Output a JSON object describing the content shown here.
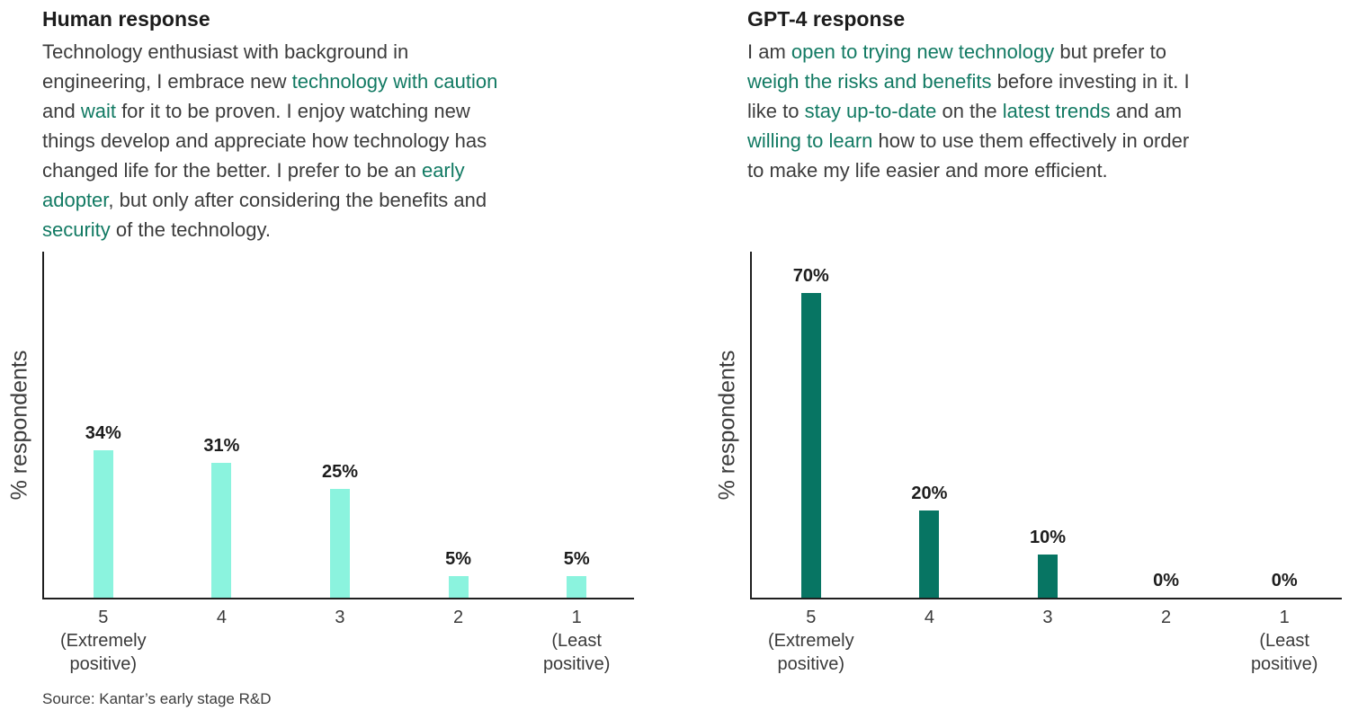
{
  "colors": {
    "highlight_text": "#127a63",
    "bar_light": "#8bf3de",
    "bar_dark": "#077563",
    "axis": "#1f1f1f",
    "title_text": "#1c1c1c",
    "body_text": "#3c3c3c"
  },
  "panels": [
    {
      "id": "human",
      "title": "Human response",
      "paragraph_lines": [
        [
          {
            "t": "Technology enthusiast with background in"
          }
        ],
        [
          {
            "t": "engineering, I embrace new "
          },
          {
            "t": "technology with caution",
            "h": true
          }
        ],
        [
          {
            "t": "and "
          },
          {
            "t": "wait",
            "h": true
          },
          {
            "t": " for it to be proven. I enjoy watching new"
          }
        ],
        [
          {
            "t": "things develop and appreciate how technology has"
          }
        ],
        [
          {
            "t": "changed life for the better. I prefer to be an "
          },
          {
            "t": "early",
            "h": true
          }
        ],
        [
          {
            "t": "adopter",
            "h": true
          },
          {
            "t": ", but only after considering the benefits and"
          }
        ],
        [
          {
            "t": "security",
            "h": true
          },
          {
            "t": " of the technology."
          }
        ]
      ]
    },
    {
      "id": "gpt4",
      "title": "GPT-4 response",
      "paragraph_lines": [
        [
          {
            "t": "I am "
          },
          {
            "t": "open to trying new technology",
            "h": true
          },
          {
            "t": " but prefer to"
          }
        ],
        [
          {
            "t": "weigh the risks and benefits",
            "h": true
          },
          {
            "t": " before investing in it. I"
          }
        ],
        [
          {
            "t": "like to "
          },
          {
            "t": "stay up-to-date",
            "h": true
          },
          {
            "t": " on the "
          },
          {
            "t": "latest trends",
            "h": true
          },
          {
            "t": " and am"
          }
        ],
        [
          {
            "t": "willing to learn",
            "h": true
          },
          {
            "t": " how to use them effectively in order"
          }
        ],
        [
          {
            "t": "to make my life easier and more efficient."
          }
        ]
      ]
    }
  ],
  "chart_data": [
    {
      "type": "bar",
      "panel": "Human response",
      "ylabel": "% respondents",
      "categories": [
        [
          "5",
          "(Extremely",
          "positive)"
        ],
        [
          "4"
        ],
        [
          "3"
        ],
        [
          "2"
        ],
        [
          "1",
          "(Least",
          "positive)"
        ]
      ],
      "values": [
        34,
        31,
        25,
        5,
        5
      ],
      "value_labels": [
        "34%",
        "31%",
        "25%",
        "5%",
        "5%"
      ],
      "bar_color": "#8bf3de",
      "ylim": [
        0,
        80
      ],
      "grid": false,
      "legend": "none"
    },
    {
      "type": "bar",
      "panel": "GPT-4 response",
      "ylabel": "% respondents",
      "categories": [
        [
          "5",
          "(Extremely",
          "positive)"
        ],
        [
          "4"
        ],
        [
          "3"
        ],
        [
          "2"
        ],
        [
          "1",
          "(Least",
          "positive)"
        ]
      ],
      "values": [
        70,
        20,
        10,
        0,
        0
      ],
      "value_labels": [
        "70%",
        "20%",
        "10%",
        "0%",
        "0%"
      ],
      "bar_color": "#077563",
      "ylim": [
        0,
        80
      ],
      "grid": false,
      "legend": "none"
    }
  ],
  "source_note": "Source: Kantar’s early stage R&D"
}
